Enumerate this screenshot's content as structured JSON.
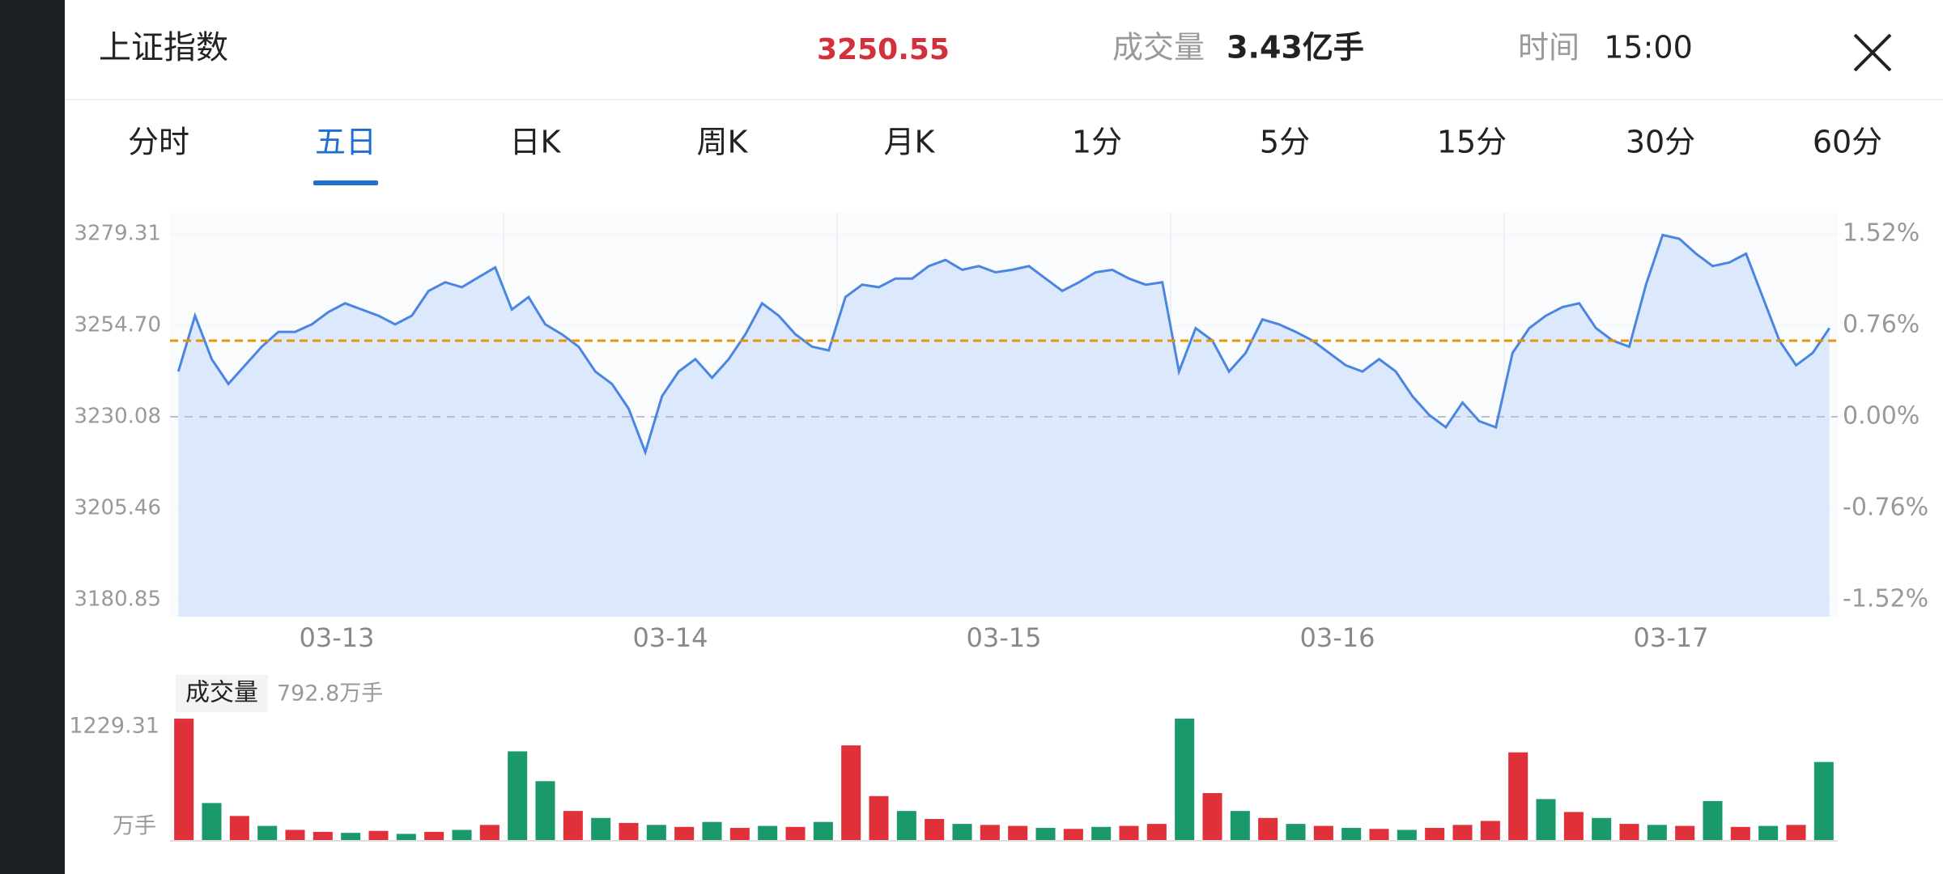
{
  "header": {
    "title": "上证指数",
    "price": "3250.55",
    "volume_label": "成交量",
    "volume": "3.43亿手",
    "time_label": "时间",
    "time": "15:00"
  },
  "tabs": {
    "items": [
      "分时",
      "五日",
      "日K",
      "周K",
      "月K",
      "1分",
      "5分",
      "15分",
      "30分",
      "60分"
    ],
    "active": 1
  },
  "chart_data": [
    {
      "type": "line",
      "days": [
        "03-13",
        "03-14",
        "03-15",
        "03-16",
        "03-17"
      ],
      "values": [
        3242.26,
        3257.28,
        3245.6,
        3238.93,
        3243.93,
        3248.94,
        3252.94,
        3252.94,
        3254.95,
        3258.28,
        3260.62,
        3258.95,
        3257.28,
        3254.95,
        3257.28,
        3263.96,
        3266.29,
        3264.96,
        3267.63,
        3270.3,
        3258.95,
        3262.29,
        3254.95,
        3252.28,
        3248.94,
        3242.26,
        3238.93,
        3232.25,
        3220.57,
        3235.59,
        3242.26,
        3245.6,
        3240.59,
        3245.6,
        3252.28,
        3260.62,
        3257.28,
        3252.28,
        3248.94,
        3247.94,
        3262.29,
        3265.63,
        3264.96,
        3267.29,
        3267.29,
        3270.63,
        3272.3,
        3269.63,
        3270.63,
        3268.96,
        3269.63,
        3270.63,
        3267.29,
        3263.96,
        3266.29,
        3268.96,
        3269.63,
        3267.29,
        3265.63,
        3266.29,
        3242.26,
        3253.94,
        3250.61,
        3242.26,
        3247.27,
        3256.28,
        3254.95,
        3252.94,
        3250.61,
        3247.27,
        3243.93,
        3242.26,
        3245.6,
        3242.26,
        3235.59,
        3230.58,
        3227.24,
        3233.92,
        3228.91,
        3227.24,
        3247.27,
        3253.94,
        3257.28,
        3259.62,
        3260.62,
        3253.94,
        3250.61,
        3248.94,
        3265.63,
        3279.0,
        3278.0,
        3273.97,
        3270.63,
        3271.63,
        3273.97,
        3262.29,
        3250.61,
        3243.93,
        3247.27,
        3253.94
      ],
      "color": "#4a86e0",
      "fill": "#dce8fc",
      "ylim": [
        3180.85,
        3279.31
      ],
      "yticks": [
        3279.31,
        {
          "value": 3254.7,
          "label": "3254.70"
        },
        3230.08,
        3205.46,
        3180.85
      ],
      "y2lim": [
        -1.52,
        1.52
      ],
      "y2ticks": [
        {
          "value": 1.52,
          "label": "1.52%"
        },
        {
          "value": 0.76,
          "label": "0.76%"
        },
        {
          "value": 0,
          "label": "0.00%"
        },
        {
          "value": -0.76,
          "label": "-0.76%"
        },
        {
          "value": -1.52,
          "label": "-1.52%"
        }
      ],
      "base_line": 3230.08,
      "price_line": 3250.55,
      "price_line_color": "#e8940a"
    },
    {
      "type": "bar",
      "title": "成交量",
      "latest_label": "792.8万手",
      "unit": "万手",
      "values": [
        1229,
        380,
        250,
        150,
        110,
        90,
        80,
        100,
        70,
        90,
        110,
        160,
        900,
        600,
        300,
        230,
        180,
        160,
        140,
        190,
        130,
        150,
        140,
        190,
        960,
        450,
        300,
        220,
        170,
        160,
        150,
        130,
        120,
        140,
        150,
        170,
        1229,
        480,
        300,
        230,
        170,
        150,
        130,
        120,
        110,
        130,
        160,
        200,
        890,
        420,
        290,
        230,
        170,
        160,
        150,
        400,
        140,
        150,
        160,
        792.8
      ],
      "colors": [
        "#e0303a",
        "#1a9a6a",
        "#e0303a",
        "#1a9a6a",
        "#e0303a",
        "#e0303a",
        "#1a9a6a",
        "#e0303a",
        "#1a9a6a",
        "#e0303a",
        "#1a9a6a",
        "#e0303a",
        "#1a9a6a",
        "#1a9a6a",
        "#e0303a",
        "#1a9a6a",
        "#e0303a",
        "#1a9a6a",
        "#e0303a",
        "#1a9a6a",
        "#e0303a",
        "#1a9a6a",
        "#e0303a",
        "#1a9a6a",
        "#e0303a",
        "#e0303a",
        "#1a9a6a",
        "#e0303a",
        "#1a9a6a",
        "#e0303a",
        "#e0303a",
        "#1a9a6a",
        "#e0303a",
        "#1a9a6a",
        "#e0303a",
        "#e0303a",
        "#1a9a6a",
        "#e0303a",
        "#1a9a6a",
        "#e0303a",
        "#1a9a6a",
        "#e0303a",
        "#1a9a6a",
        "#e0303a",
        "#1a9a6a",
        "#e0303a",
        "#e0303a",
        "#e0303a",
        "#e0303a",
        "#1a9a6a",
        "#e0303a",
        "#1a9a6a",
        "#e0303a",
        "#1a9a6a",
        "#e0303a",
        "#1a9a6a",
        "#e0303a",
        "#1a9a6a",
        "#e0303a",
        "#1a9a6a"
      ],
      "ylim": [
        0,
        1229.31
      ],
      "yticks": [
        1229.31
      ]
    }
  ]
}
